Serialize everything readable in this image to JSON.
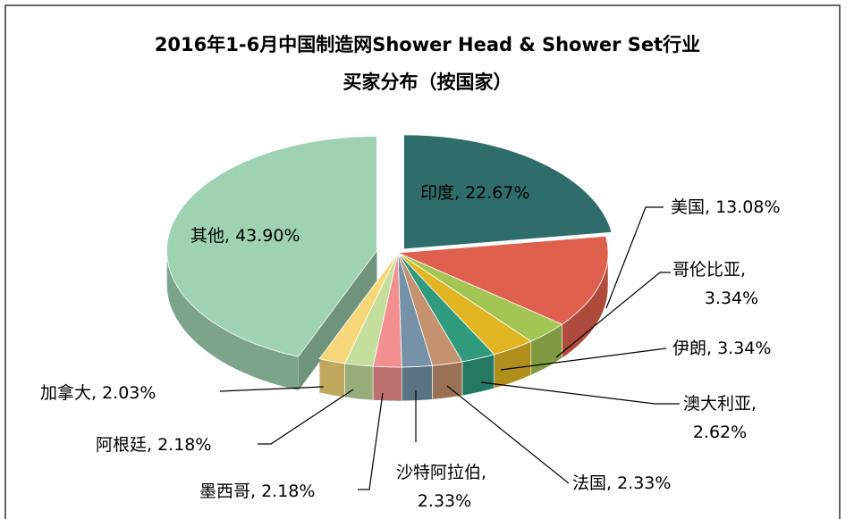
{
  "chart_data": {
    "type": "pie3d",
    "title": [
      "2016年1-6月中国制造网Shower Head & Shower Set行业",
      "买家分布（按国家）"
    ],
    "values": [
      22.67,
      13.08,
      3.34,
      3.34,
      2.62,
      2.33,
      2.33,
      2.18,
      2.18,
      2.03,
      43.9
    ],
    "labels": [
      [
        "印度, 22.67%"
      ],
      [
        "美国, 13.08%"
      ],
      [
        "哥伦比亚,",
        "3.34%"
      ],
      [
        "伊朗, 3.34%"
      ],
      [
        "澳大利亚,",
        "2.62%"
      ],
      [
        "法国, 2.33%"
      ],
      [
        "沙特阿拉伯,",
        "2.33%"
      ],
      [
        "墨西哥, 2.18%"
      ],
      [
        "阿根廷, 2.18%"
      ],
      [
        "加拿大, 2.03%"
      ],
      [
        "其他, 43.90%"
      ]
    ],
    "colors": [
      "#2f6d6c",
      "#e0604e",
      "#a3c552",
      "#e2b622",
      "#2f9a7c",
      "#c4926e",
      "#7592a8",
      "#f29090",
      "#c4de9c",
      "#f8d77a",
      "#9fd2b2"
    ]
  }
}
